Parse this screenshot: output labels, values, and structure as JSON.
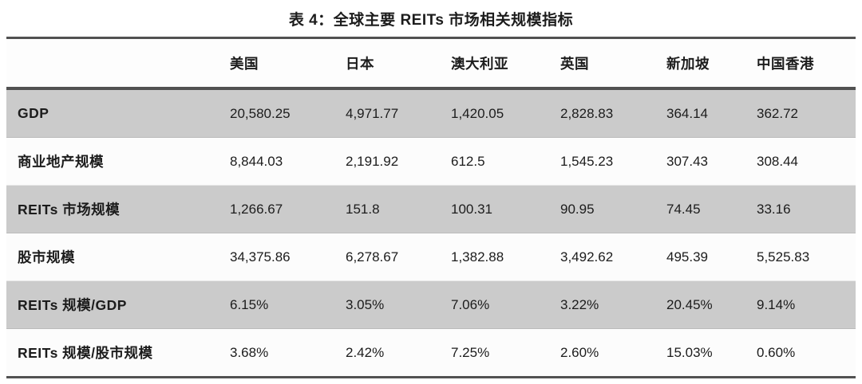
{
  "title": "表 4：全球主要 REITs 市场相关规模指标",
  "chart_data": {
    "type": "table",
    "title": "表 4：全球主要 REITs 市场相关规模指标",
    "columns": [
      "",
      "美国",
      "日本",
      "澳大利亚",
      "英国",
      "新加坡",
      "中国香港"
    ],
    "rows": [
      {
        "label": "GDP",
        "values": [
          "20,580.25",
          "4,971.77",
          "1,420.05",
          "2,828.83",
          "364.14",
          "362.72"
        ]
      },
      {
        "label": "商业地产规模",
        "values": [
          "8,844.03",
          "2,191.92",
          "612.5",
          "1,545.23",
          "307.43",
          "308.44"
        ]
      },
      {
        "label": "REITs 市场规模",
        "values": [
          "1,266.67",
          "151.8",
          "100.31",
          "90.95",
          "74.45",
          "33.16"
        ]
      },
      {
        "label": "股市规模",
        "values": [
          "34,375.86",
          "6,278.67",
          "1,382.88",
          "3,492.62",
          "495.39",
          "5,525.83"
        ]
      },
      {
        "label": "REITs 规模/GDP",
        "values": [
          "6.15%",
          "3.05%",
          "7.06%",
          "3.22%",
          "20.45%",
          "9.14%"
        ]
      },
      {
        "label": "REITs 规模/股市规模",
        "values": [
          "3.68%",
          "2.42%",
          "7.25%",
          "2.60%",
          "15.03%",
          "0.60%"
        ]
      }
    ],
    "layout": {
      "shaded_row_indexes": [
        0,
        2,
        4
      ],
      "first_row_shaded": true
    }
  },
  "colors": {
    "shaded_row_bg": "#cbcbcb",
    "plain_row_bg": "#fcfcfc",
    "rule": "#515151",
    "text": "#1c1c1c"
  }
}
